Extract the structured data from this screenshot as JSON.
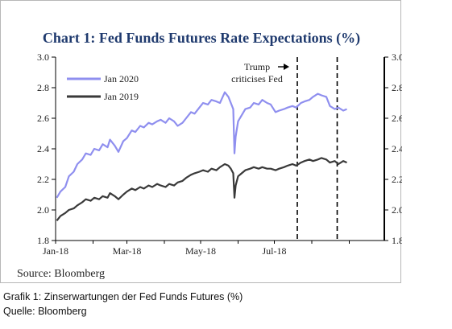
{
  "chart_data": {
    "type": "line",
    "title": "Chart 1: Fed Funds Futures Rate Expectations (%)",
    "xlabel": "",
    "ylabel": "",
    "ylim": [
      1.8,
      3.0
    ],
    "y_ticks": [
      "1.8",
      "2.0",
      "2.2",
      "2.4",
      "2.6",
      "2.8",
      "3.0"
    ],
    "x_range": [
      "2018-01-01",
      "2018-09-30"
    ],
    "x_ticks": [
      {
        "date": "2018-01-01",
        "label": "Jan-18"
      },
      {
        "date": "2018-03-01",
        "label": "Mar-18"
      },
      {
        "date": "2018-05-01",
        "label": "May-18"
      },
      {
        "date": "2018-07-01",
        "label": "Jul-18"
      }
    ],
    "legend_position": "top-left",
    "series": [
      {
        "name": "Jan 2020",
        "color": "#8f8fef",
        "points": [
          [
            "2018-01-02",
            2.08
          ],
          [
            "2018-01-05",
            2.12
          ],
          [
            "2018-01-09",
            2.15
          ],
          [
            "2018-01-12",
            2.22
          ],
          [
            "2018-01-16",
            2.25
          ],
          [
            "2018-01-19",
            2.3
          ],
          [
            "2018-01-23",
            2.33
          ],
          [
            "2018-01-26",
            2.37
          ],
          [
            "2018-01-30",
            2.36
          ],
          [
            "2018-02-02",
            2.4
          ],
          [
            "2018-02-06",
            2.39
          ],
          [
            "2018-02-09",
            2.43
          ],
          [
            "2018-02-13",
            2.41
          ],
          [
            "2018-02-15",
            2.46
          ],
          [
            "2018-02-19",
            2.42
          ],
          [
            "2018-02-22",
            2.38
          ],
          [
            "2018-02-26",
            2.45
          ],
          [
            "2018-03-01",
            2.47
          ],
          [
            "2018-03-05",
            2.52
          ],
          [
            "2018-03-08",
            2.51
          ],
          [
            "2018-03-12",
            2.55
          ],
          [
            "2018-03-15",
            2.54
          ],
          [
            "2018-03-19",
            2.57
          ],
          [
            "2018-03-22",
            2.56
          ],
          [
            "2018-03-26",
            2.58
          ],
          [
            "2018-03-29",
            2.59
          ],
          [
            "2018-04-02",
            2.57
          ],
          [
            "2018-04-05",
            2.6
          ],
          [
            "2018-04-09",
            2.58
          ],
          [
            "2018-04-12",
            2.55
          ],
          [
            "2018-04-16",
            2.57
          ],
          [
            "2018-04-19",
            2.6
          ],
          [
            "2018-04-23",
            2.64
          ],
          [
            "2018-04-26",
            2.63
          ],
          [
            "2018-04-30",
            2.67
          ],
          [
            "2018-05-03",
            2.7
          ],
          [
            "2018-05-07",
            2.69
          ],
          [
            "2018-05-10",
            2.72
          ],
          [
            "2018-05-14",
            2.71
          ],
          [
            "2018-05-17",
            2.7
          ],
          [
            "2018-05-21",
            2.77
          ],
          [
            "2018-05-24",
            2.74
          ],
          [
            "2018-05-26",
            2.7
          ],
          [
            "2018-05-28",
            2.66
          ],
          [
            "2018-05-29",
            2.37
          ],
          [
            "2018-05-30",
            2.48
          ],
          [
            "2018-06-01",
            2.58
          ],
          [
            "2018-06-04",
            2.62
          ],
          [
            "2018-06-07",
            2.66
          ],
          [
            "2018-06-11",
            2.67
          ],
          [
            "2018-06-14",
            2.7
          ],
          [
            "2018-06-18",
            2.69
          ],
          [
            "2018-06-21",
            2.72
          ],
          [
            "2018-06-25",
            2.7
          ],
          [
            "2018-06-28",
            2.69
          ],
          [
            "2018-07-02",
            2.64
          ],
          [
            "2018-07-05",
            2.65
          ],
          [
            "2018-07-09",
            2.66
          ],
          [
            "2018-07-12",
            2.67
          ],
          [
            "2018-07-16",
            2.68
          ],
          [
            "2018-07-19",
            2.67
          ],
          [
            "2018-07-23",
            2.7
          ],
          [
            "2018-07-26",
            2.71
          ],
          [
            "2018-07-30",
            2.72
          ],
          [
            "2018-08-02",
            2.74
          ],
          [
            "2018-08-06",
            2.76
          ],
          [
            "2018-08-09",
            2.75
          ],
          [
            "2018-08-13",
            2.74
          ],
          [
            "2018-08-16",
            2.68
          ],
          [
            "2018-08-20",
            2.66
          ],
          [
            "2018-08-23",
            2.67
          ],
          [
            "2018-08-27",
            2.65
          ],
          [
            "2018-08-30",
            2.66
          ]
        ]
      },
      {
        "name": "Jan 2019",
        "color": "#3a3a3a",
        "points": [
          [
            "2018-01-02",
            1.93
          ],
          [
            "2018-01-05",
            1.96
          ],
          [
            "2018-01-09",
            1.98
          ],
          [
            "2018-01-12",
            2.0
          ],
          [
            "2018-01-16",
            2.01
          ],
          [
            "2018-01-19",
            2.03
          ],
          [
            "2018-01-23",
            2.05
          ],
          [
            "2018-01-26",
            2.07
          ],
          [
            "2018-01-30",
            2.06
          ],
          [
            "2018-02-02",
            2.08
          ],
          [
            "2018-02-06",
            2.07
          ],
          [
            "2018-02-09",
            2.09
          ],
          [
            "2018-02-13",
            2.08
          ],
          [
            "2018-02-15",
            2.11
          ],
          [
            "2018-02-19",
            2.09
          ],
          [
            "2018-02-22",
            2.07
          ],
          [
            "2018-02-26",
            2.1
          ],
          [
            "2018-03-01",
            2.12
          ],
          [
            "2018-03-05",
            2.14
          ],
          [
            "2018-03-08",
            2.13
          ],
          [
            "2018-03-12",
            2.15
          ],
          [
            "2018-03-15",
            2.14
          ],
          [
            "2018-03-19",
            2.16
          ],
          [
            "2018-03-22",
            2.15
          ],
          [
            "2018-03-26",
            2.17
          ],
          [
            "2018-03-29",
            2.16
          ],
          [
            "2018-04-02",
            2.15
          ],
          [
            "2018-04-05",
            2.17
          ],
          [
            "2018-04-09",
            2.16
          ],
          [
            "2018-04-12",
            2.18
          ],
          [
            "2018-04-16",
            2.19
          ],
          [
            "2018-04-19",
            2.21
          ],
          [
            "2018-04-23",
            2.23
          ],
          [
            "2018-04-26",
            2.24
          ],
          [
            "2018-04-30",
            2.25
          ],
          [
            "2018-05-03",
            2.26
          ],
          [
            "2018-05-07",
            2.25
          ],
          [
            "2018-05-10",
            2.27
          ],
          [
            "2018-05-14",
            2.26
          ],
          [
            "2018-05-17",
            2.28
          ],
          [
            "2018-05-21",
            2.3
          ],
          [
            "2018-05-24",
            2.29
          ],
          [
            "2018-05-26",
            2.27
          ],
          [
            "2018-05-28",
            2.24
          ],
          [
            "2018-05-29",
            2.08
          ],
          [
            "2018-05-30",
            2.16
          ],
          [
            "2018-06-01",
            2.22
          ],
          [
            "2018-06-04",
            2.24
          ],
          [
            "2018-06-07",
            2.26
          ],
          [
            "2018-06-11",
            2.27
          ],
          [
            "2018-06-14",
            2.28
          ],
          [
            "2018-06-18",
            2.27
          ],
          [
            "2018-06-21",
            2.28
          ],
          [
            "2018-06-25",
            2.27
          ],
          [
            "2018-06-28",
            2.27
          ],
          [
            "2018-07-02",
            2.26
          ],
          [
            "2018-07-05",
            2.27
          ],
          [
            "2018-07-09",
            2.28
          ],
          [
            "2018-07-12",
            2.29
          ],
          [
            "2018-07-16",
            2.3
          ],
          [
            "2018-07-19",
            2.29
          ],
          [
            "2018-07-23",
            2.31
          ],
          [
            "2018-07-26",
            2.32
          ],
          [
            "2018-07-30",
            2.33
          ],
          [
            "2018-08-02",
            2.32
          ],
          [
            "2018-08-06",
            2.33
          ],
          [
            "2018-08-09",
            2.34
          ],
          [
            "2018-08-13",
            2.33
          ],
          [
            "2018-08-16",
            2.31
          ],
          [
            "2018-08-20",
            2.32
          ],
          [
            "2018-08-23",
            2.3
          ],
          [
            "2018-08-27",
            2.32
          ],
          [
            "2018-08-30",
            2.31
          ]
        ]
      }
    ],
    "events": [
      {
        "date": "2018-07-20",
        "label_lines": [
          "Trump",
          "criticises Fed"
        ]
      },
      {
        "date": "2018-08-22",
        "label_lines": []
      }
    ]
  },
  "source": "Source: Bloomberg",
  "caption": {
    "line1": "Grafik 1: Zinserwartungen der Fed Funds Futures (%)",
    "line2": "Quelle: Bloomberg"
  }
}
